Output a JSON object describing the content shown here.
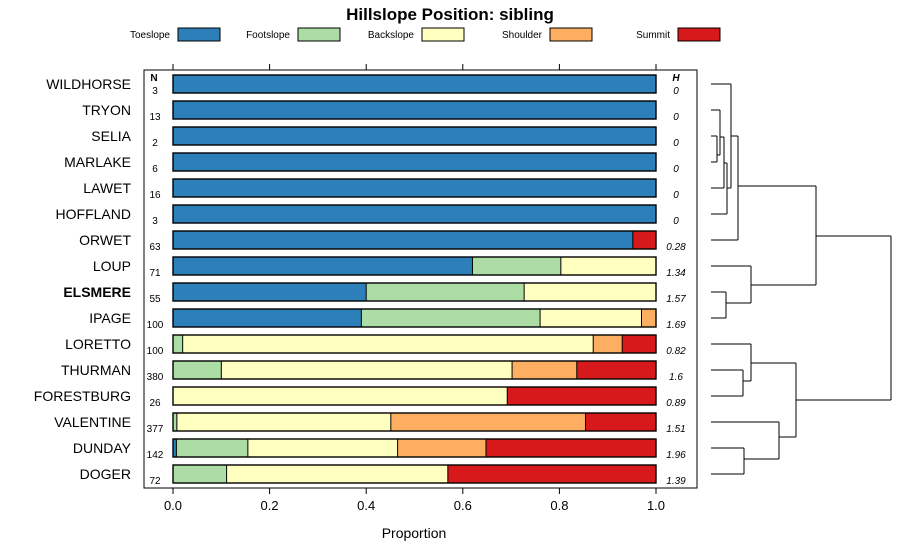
{
  "chart_data": {
    "type": "bar",
    "orientation": "horizontal-stacked",
    "title": "Hillslope Position: sibling",
    "xlabel": "Proportion",
    "xlim": [
      0,
      1
    ],
    "xticks": [
      "0.0",
      "0.2",
      "0.4",
      "0.6",
      "0.8",
      "1.0"
    ],
    "n_header": "N",
    "h_header": "H",
    "legend_position": "top",
    "series": [
      {
        "name": "Toeslope",
        "color": "#2c7fb8"
      },
      {
        "name": "Footslope",
        "color": "#abdda4"
      },
      {
        "name": "Backslope",
        "color": "#ffffbf"
      },
      {
        "name": "Shoulder",
        "color": "#fdae61"
      },
      {
        "name": "Summit",
        "color": "#d7191c"
      }
    ],
    "rows": [
      {
        "label": "WILDHORSE",
        "n": "3",
        "h": "0",
        "bold": false,
        "values": [
          1.0,
          0,
          0,
          0,
          0
        ]
      },
      {
        "label": "TRYON",
        "n": "13",
        "h": "0",
        "bold": false,
        "values": [
          1.0,
          0,
          0,
          0,
          0
        ]
      },
      {
        "label": "SELIA",
        "n": "2",
        "h": "0",
        "bold": false,
        "values": [
          1.0,
          0,
          0,
          0,
          0
        ]
      },
      {
        "label": "MARLAKE",
        "n": "6",
        "h": "0",
        "bold": false,
        "values": [
          1.0,
          0,
          0,
          0,
          0
        ]
      },
      {
        "label": "LAWET",
        "n": "16",
        "h": "0",
        "bold": false,
        "values": [
          1.0,
          0,
          0,
          0,
          0
        ]
      },
      {
        "label": "HOFFLAND",
        "n": "3",
        "h": "0",
        "bold": false,
        "values": [
          1.0,
          0,
          0,
          0,
          0
        ]
      },
      {
        "label": "ORWET",
        "n": "63",
        "h": "0.28",
        "bold": false,
        "values": [
          0.952,
          0,
          0,
          0,
          0.048
        ]
      },
      {
        "label": "LOUP",
        "n": "71",
        "h": "1.34",
        "bold": false,
        "values": [
          0.62,
          0.183,
          0.197,
          0,
          0
        ]
      },
      {
        "label": "ELSMERE",
        "n": "55",
        "h": "1.57",
        "bold": true,
        "values": [
          0.4,
          0.327,
          0.273,
          0,
          0
        ]
      },
      {
        "label": "IPAGE",
        "n": "100",
        "h": "1.69",
        "bold": false,
        "values": [
          0.39,
          0.37,
          0.21,
          0.03,
          0
        ]
      },
      {
        "label": "LORETTO",
        "n": "100",
        "h": "0.82",
        "bold": false,
        "values": [
          0,
          0.02,
          0.85,
          0.06,
          0.07
        ]
      },
      {
        "label": "THURMAN",
        "n": "380",
        "h": "1.6",
        "bold": false,
        "values": [
          0,
          0.1,
          0.602,
          0.134,
          0.164
        ]
      },
      {
        "label": "FORESTBURG",
        "n": "26",
        "h": "0.89",
        "bold": false,
        "values": [
          0,
          0,
          0.692,
          0,
          0.308
        ]
      },
      {
        "label": "VALENTINE",
        "n": "377",
        "h": "1.51",
        "bold": false,
        "values": [
          0,
          0.008,
          0.443,
          0.403,
          0.146
        ]
      },
      {
        "label": "DUNDAY",
        "n": "142",
        "h": "1.96",
        "bold": false,
        "values": [
          0.007,
          0.148,
          0.31,
          0.183,
          0.352
        ]
      },
      {
        "label": "DOGER",
        "n": "72",
        "h": "1.39",
        "bold": false,
        "values": [
          0,
          0.111,
          0.458,
          0,
          0.431
        ]
      }
    ]
  }
}
